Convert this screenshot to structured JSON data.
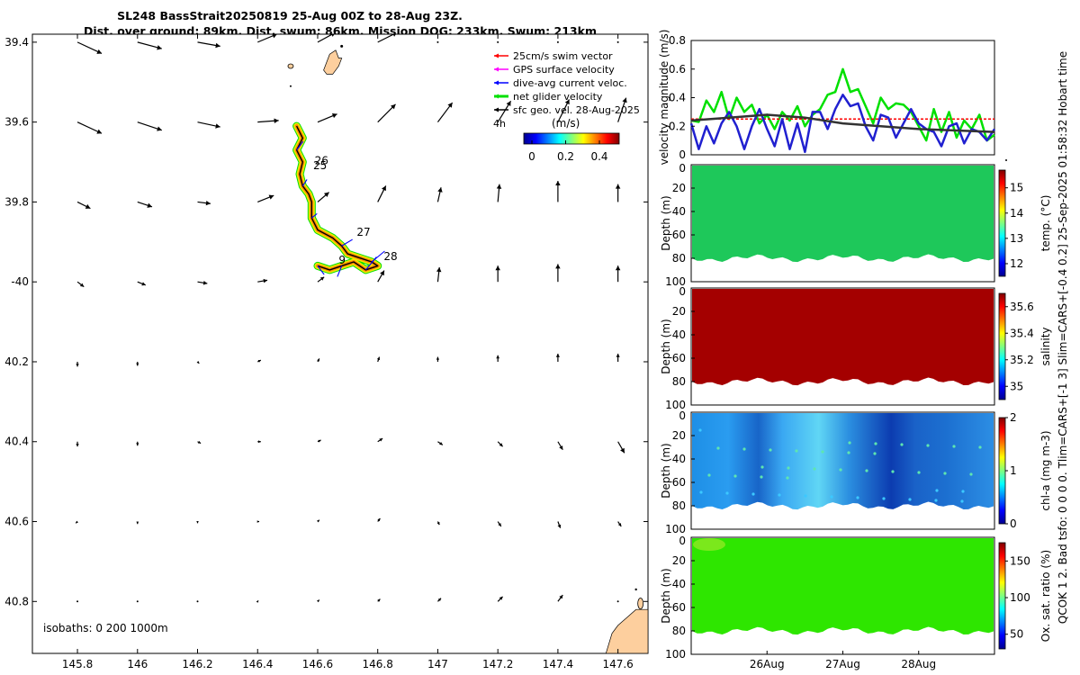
{
  "title_line1": "SL248 BassStrait20250819 25-Aug 00Z to 28-Aug 23Z.",
  "title_line2": "Dist. over ground: 89km. Dist. swum: 86km. Mission DOG: 233km. Swum: 213km",
  "side_note": "QCOK 1  2. Bad tsfo: 0  0  0  0. Tlim=CARS+[-1 3] Slim=CARS+[-0.4 0.2] 25-Sep-2025 01:58:32 Hobart time",
  "chart_data": [
    {
      "id": "map",
      "type": "scatter",
      "title": "SL248 BassStrait20250819",
      "xlim": [
        145.65,
        147.7
      ],
      "ylim": [
        -40.93,
        -39.38
      ],
      "xticks": [
        145.8,
        146,
        146.2,
        146.4,
        146.6,
        146.8,
        147,
        147.2,
        147.4,
        147.6
      ],
      "xtick_labels": [
        "145.8",
        "146",
        "146.2",
        "146.4",
        "146.6",
        "146.8",
        "147",
        "147.2",
        "147.4",
        "147.6"
      ],
      "yticks": [
        -39.4,
        -39.6,
        -39.8,
        -40,
        -40.2,
        -40.4,
        -40.6,
        -40.8
      ],
      "ytick_labels": [
        "39.4",
        "39.6",
        "39.8",
        "-40",
        "40.2",
        "40.4",
        "40.6",
        "40.8"
      ],
      "legend": [
        {
          "label": "25cm/s swim vector",
          "color": "#ff0000"
        },
        {
          "label": "GPS surface velocity",
          "color": "#ff00ff"
        },
        {
          "label": "dive-avg current veloc.",
          "color": "#0000ff"
        },
        {
          "label": "net glider velocity",
          "color": "#00e000"
        },
        {
          "label": "sfc geo. vel. 28-Aug-2025",
          "color": "#000000"
        }
      ],
      "legend_extra": "4h",
      "colorbar_label": "(m/s)",
      "colorbar_ticks": [
        "0",
        "0.2",
        "0.4"
      ],
      "isobaths_label": "isobaths: 0   200  1000m",
      "day_labels": [
        {
          "text": "26",
          "lon": 146.59,
          "lat": -39.705
        },
        {
          "text": "25",
          "lon": 146.585,
          "lat": -39.718
        },
        {
          "text": "27",
          "lon": 146.73,
          "lat": -39.885
        },
        {
          "text": "28",
          "lon": 146.82,
          "lat": -39.945
        },
        {
          "text": "9",
          "lon": 146.67,
          "lat": -39.955
        }
      ],
      "track": [
        [
          146.53,
          -39.61
        ],
        [
          146.55,
          -39.64
        ],
        [
          146.53,
          -39.67
        ],
        [
          146.55,
          -39.7
        ],
        [
          146.54,
          -39.73
        ],
        [
          146.55,
          -39.76
        ],
        [
          146.57,
          -39.78
        ],
        [
          146.58,
          -39.8
        ],
        [
          146.58,
          -39.84
        ],
        [
          146.6,
          -39.87
        ],
        [
          146.65,
          -39.89
        ],
        [
          146.68,
          -39.91
        ],
        [
          146.7,
          -39.93
        ],
        [
          146.74,
          -39.94
        ],
        [
          146.78,
          -39.95
        ],
        [
          146.8,
          -39.96
        ],
        [
          146.76,
          -39.97
        ],
        [
          146.72,
          -39.95
        ],
        [
          146.68,
          -39.96
        ],
        [
          146.64,
          -39.97
        ],
        [
          146.6,
          -39.96
        ]
      ],
      "vector_grid_lons": [
        145.8,
        146,
        146.2,
        146.4,
        146.6,
        146.8,
        147,
        147.2,
        147.4,
        147.6
      ],
      "vector_grid_lats": [
        -39.4,
        -39.6,
        -39.8,
        -40,
        -40.2,
        -40.4,
        -40.6,
        -40.8
      ],
      "vectors": [
        [
          [
            0.3,
            -0.14
          ],
          [
            0.3,
            -0.08
          ],
          [
            0.28,
            -0.05
          ],
          [
            0.24,
            0.1
          ],
          [
            0.22,
            0.12
          ],
          [
            0.24,
            0.12
          ],
          [
            0.0,
            0.0
          ],
          [
            0.0,
            0.0
          ],
          [
            0.0,
            0.0
          ],
          [
            0.0,
            0.0
          ]
        ],
        [
          [
            0.3,
            -0.14
          ],
          [
            0.3,
            -0.1
          ],
          [
            0.28,
            -0.06
          ],
          [
            0.26,
            0.02
          ],
          [
            0.24,
            0.1
          ],
          [
            0.22,
            0.22
          ],
          [
            0.18,
            0.24
          ],
          [
            0.16,
            0.26
          ],
          [
            0.14,
            0.28
          ],
          [
            0.1,
            0.3
          ]
        ],
        [
          [
            0.16,
            -0.08
          ],
          [
            0.18,
            -0.06
          ],
          [
            0.16,
            -0.02
          ],
          [
            0.2,
            0.08
          ],
          [
            0.14,
            0.12
          ],
          [
            0.1,
            0.2
          ],
          [
            0.04,
            0.18
          ],
          [
            0.02,
            0.22
          ],
          [
            0.0,
            0.26
          ],
          [
            0.0,
            0.22
          ]
        ],
        [
          [
            0.08,
            -0.06
          ],
          [
            0.1,
            -0.04
          ],
          [
            0.12,
            -0.02
          ],
          [
            0.12,
            0.02
          ],
          [
            0.08,
            0.06
          ],
          [
            0.08,
            0.14
          ],
          [
            0.02,
            0.18
          ],
          [
            0.0,
            0.2
          ],
          [
            0.0,
            0.22
          ],
          [
            0.0,
            0.2
          ]
        ],
        [
          [
            0.0,
            -0.06
          ],
          [
            0.0,
            -0.05
          ],
          [
            0.02,
            -0.02
          ],
          [
            0.04,
            0.02
          ],
          [
            0.02,
            0.04
          ],
          [
            0.02,
            0.06
          ],
          [
            0.0,
            0.06
          ],
          [
            0.0,
            0.08
          ],
          [
            0.0,
            0.1
          ],
          [
            0.0,
            0.1
          ]
        ],
        [
          [
            0.0,
            -0.06
          ],
          [
            0.0,
            -0.05
          ],
          [
            0.04,
            -0.02
          ],
          [
            0.04,
            0.0
          ],
          [
            0.04,
            0.02
          ],
          [
            0.06,
            0.04
          ],
          [
            0.06,
            -0.04
          ],
          [
            0.06,
            -0.06
          ],
          [
            0.06,
            -0.1
          ],
          [
            0.08,
            -0.14
          ]
        ],
        [
          [
            -0.02,
            -0.02
          ],
          [
            0.0,
            -0.03
          ],
          [
            0.0,
            -0.02
          ],
          [
            0.02,
            0.0
          ],
          [
            0.02,
            0.02
          ],
          [
            0.03,
            0.04
          ],
          [
            0.02,
            -0.04
          ],
          [
            0.04,
            -0.06
          ],
          [
            0.03,
            -0.08
          ],
          [
            0.04,
            -0.06
          ]
        ],
        [
          [
            0.0,
            0.0
          ],
          [
            0.0,
            0.0
          ],
          [
            0.0,
            0.0
          ],
          [
            0.01,
            0.01
          ],
          [
            0.02,
            0.02
          ],
          [
            0.03,
            0.03
          ],
          [
            0.04,
            0.04
          ],
          [
            0.06,
            0.06
          ],
          [
            0.06,
            0.08
          ],
          [
            0.0,
            0.0
          ]
        ]
      ],
      "land": [
        {
          "name": "Hogan Group islet",
          "pts": [
            [
              146.62,
              -39.47
            ],
            [
              146.64,
              -39.43
            ],
            [
              146.66,
              -39.42
            ],
            [
              146.67,
              -39.44
            ],
            [
              146.68,
              -39.44
            ],
            [
              146.67,
              -39.46
            ],
            [
              146.65,
              -39.48
            ],
            [
              146.63,
              -39.48
            ]
          ]
        },
        {
          "name": "Tasmania coast",
          "pts": [
            [
              147.56,
              -40.93
            ],
            [
              147.58,
              -40.88
            ],
            [
              147.6,
              -40.86
            ],
            [
              147.63,
              -40.84
            ],
            [
              147.66,
              -40.82
            ],
            [
              147.7,
              -40.82
            ],
            [
              147.7,
              -40.93
            ]
          ]
        }
      ]
    },
    {
      "id": "velocity",
      "type": "line",
      "ylabel": "velocity magnitude (m/s)",
      "ylim": [
        0,
        0.8
      ],
      "yticks": [
        0,
        0.2,
        0.4,
        0.6,
        0.8
      ],
      "ytick_labels": [
        "0",
        "0.2",
        "0.4",
        "0.6",
        "0.8"
      ],
      "xlim": [
        0,
        4
      ],
      "series": [
        {
          "name": "net glider velocity",
          "color": "#00e000",
          "x": [
            0,
            0.1,
            0.2,
            0.3,
            0.4,
            0.5,
            0.6,
            0.7,
            0.8,
            0.9,
            1.0,
            1.1,
            1.2,
            1.3,
            1.4,
            1.5,
            1.6,
            1.7,
            1.8,
            1.9,
            2.0,
            2.1,
            2.2,
            2.3,
            2.4,
            2.5,
            2.6,
            2.7,
            2.8,
            2.9,
            3.0,
            3.1,
            3.2,
            3.3,
            3.4,
            3.5,
            3.6,
            3.7,
            3.8,
            3.9,
            4.0
          ],
          "values": [
            0.24,
            0.23,
            0.38,
            0.3,
            0.44,
            0.25,
            0.4,
            0.3,
            0.35,
            0.22,
            0.28,
            0.18,
            0.3,
            0.24,
            0.34,
            0.2,
            0.28,
            0.32,
            0.42,
            0.44,
            0.6,
            0.44,
            0.46,
            0.34,
            0.22,
            0.4,
            0.32,
            0.36,
            0.35,
            0.3,
            0.2,
            0.1,
            0.32,
            0.16,
            0.3,
            0.12,
            0.24,
            0.18,
            0.28,
            0.1,
            0.14
          ]
        },
        {
          "name": "sfc geo. vel.",
          "color": "#ff0000",
          "x": [
            0,
            1,
            2,
            3,
            4
          ],
          "values": [
            0.25,
            0.25,
            0.25,
            0.25,
            0.25
          ]
        },
        {
          "name": "dive-avg current veloc.",
          "color": "#2020d0",
          "x": [
            0,
            0.1,
            0.2,
            0.3,
            0.4,
            0.5,
            0.6,
            0.7,
            0.8,
            0.9,
            1.0,
            1.1,
            1.2,
            1.3,
            1.4,
            1.5,
            1.6,
            1.7,
            1.8,
            1.9,
            2.0,
            2.1,
            2.2,
            2.3,
            2.4,
            2.5,
            2.6,
            2.7,
            2.8,
            2.9,
            3.0,
            3.1,
            3.2,
            3.3,
            3.4,
            3.5,
            3.6,
            3.7,
            3.8,
            3.9,
            4.0
          ],
          "values": [
            0.22,
            0.04,
            0.2,
            0.08,
            0.22,
            0.3,
            0.2,
            0.04,
            0.2,
            0.32,
            0.18,
            0.06,
            0.25,
            0.04,
            0.22,
            0.02,
            0.3,
            0.3,
            0.18,
            0.32,
            0.42,
            0.34,
            0.36,
            0.2,
            0.1,
            0.28,
            0.26,
            0.12,
            0.22,
            0.32,
            0.22,
            0.18,
            0.16,
            0.06,
            0.2,
            0.22,
            0.08,
            0.18,
            0.16,
            0.1,
            0.18
          ]
        },
        {
          "name": "smoothed",
          "color": "#333333",
          "x": [
            0,
            0.5,
            1,
            1.5,
            2,
            2.5,
            3,
            3.5,
            4
          ],
          "values": [
            0.24,
            0.26,
            0.28,
            0.26,
            0.22,
            0.2,
            0.18,
            0.17,
            0.16
          ]
        }
      ]
    },
    {
      "id": "temp",
      "type": "heatmap",
      "ylabel": "Depth (m)",
      "cbar_label": "temp. (°C)",
      "ylim": [
        100,
        0
      ],
      "yticks": [
        20,
        40,
        60,
        80,
        100
      ],
      "ytick_labels": [
        "20",
        "40",
        "60",
        "80",
        "100"
      ],
      "clim": [
        11.5,
        15.7
      ],
      "cticks": [
        12,
        13,
        14,
        15
      ],
      "ctick_labels": [
        "12",
        "13",
        "14",
        "15"
      ],
      "field_value": 13.1
    },
    {
      "id": "salinity",
      "type": "heatmap",
      "ylabel": "Depth (m)",
      "cbar_label": "salinity",
      "ylim": [
        100,
        0
      ],
      "yticks": [
        20,
        40,
        60,
        80,
        100
      ],
      "ytick_labels": [
        "20",
        "40",
        "60",
        "80",
        "100"
      ],
      "clim": [
        34.9,
        35.7
      ],
      "cticks": [
        35,
        35.2,
        35.4,
        35.6
      ],
      "ctick_labels": [
        "35",
        "35.2",
        "35.4",
        "35.6"
      ],
      "field_value": 35.68
    },
    {
      "id": "chla",
      "type": "heatmap",
      "ylabel": "Depth (m)",
      "cbar_label": "chl-a  (mg m-3)",
      "ylim": [
        100,
        0
      ],
      "yticks": [
        20,
        40,
        60,
        80,
        100
      ],
      "ytick_labels": [
        "20",
        "40",
        "60",
        "80",
        "100"
      ],
      "clim": [
        0,
        2
      ],
      "cticks": [
        0,
        1,
        2
      ],
      "ctick_labels": [
        "0",
        "1",
        "2"
      ],
      "field_value": 0.55
    },
    {
      "id": "oxygen",
      "type": "heatmap",
      "ylabel": "Depth (m)",
      "cbar_label": "Ox. sat. ratio (%)",
      "ylim": [
        100,
        0
      ],
      "yticks": [
        20,
        40,
        60,
        80,
        100
      ],
      "ytick_labels": [
        "20",
        "40",
        "60",
        "80",
        "100"
      ],
      "clim": [
        30,
        175
      ],
      "cticks": [
        50,
        100,
        150
      ],
      "ctick_labels": [
        "50",
        "100",
        "150"
      ],
      "field_value": 100,
      "xticks": [
        "26Aug",
        "27Aug",
        "28Aug"
      ]
    }
  ]
}
